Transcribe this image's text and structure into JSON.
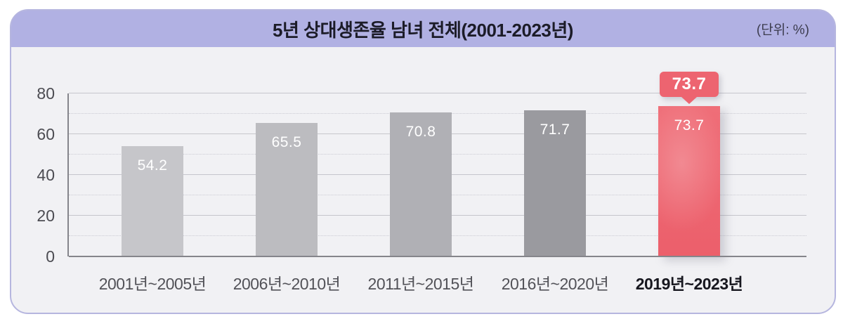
{
  "header": {
    "title": "5년 상대생존율 남녀 전체(2001-2023년)",
    "unit_label": "(단위: %)"
  },
  "chart_data": {
    "type": "bar",
    "title": "5년 상대생존율 남녀 전체(2001-2023년)",
    "unit": "%",
    "categories": [
      "2001년~2005년",
      "2006년~2010년",
      "2011년~2015년",
      "2016년~2020년",
      "2019년~2023년"
    ],
    "values": [
      54.2,
      65.5,
      70.8,
      71.7,
      73.7
    ],
    "value_labels": [
      "54.2",
      "65.5",
      "70.8",
      "71.7",
      "73.7"
    ],
    "bar_colors": [
      "#c6c6ca",
      "#bcbcc0",
      "#b0b0b5",
      "#9a9a9f",
      "#ed6470"
    ],
    "highlight": {
      "index": 4,
      "callout_label": "73.7",
      "color": "#ed6470"
    },
    "ylim": [
      0,
      80
    ],
    "yticks_major": [
      0,
      20,
      40,
      60,
      80
    ],
    "yticks_minor": [
      10,
      30,
      50,
      70
    ],
    "grid": "horizontal",
    "legend": "none",
    "xlabel": "",
    "ylabel": "",
    "accent_colors": {
      "header_band": "#b1b1e3",
      "panel_background": "#f1f1f4",
      "panel_border": "#b6b6df"
    }
  }
}
